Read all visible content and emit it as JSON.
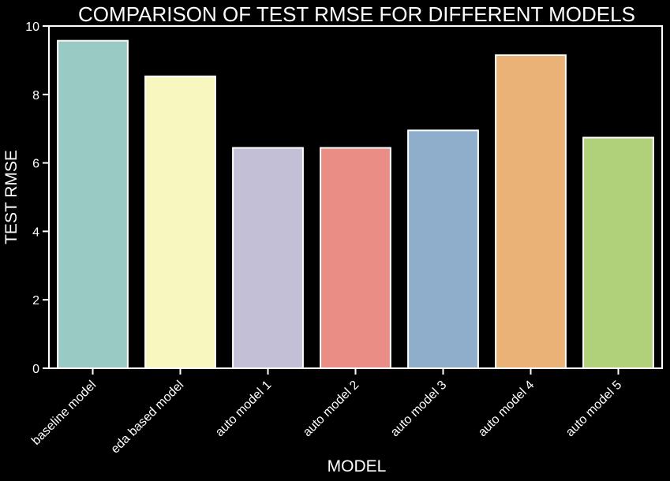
{
  "chart_data": {
    "type": "bar",
    "title": "COMPARISON OF TEST RMSE FOR DIFFERENT MODELS",
    "xlabel": "MODEL",
    "ylabel": "TEST RMSE",
    "categories": [
      "baseline model",
      "eda based model",
      "auto model 1",
      "auto model 2",
      "auto model 3",
      "auto model 4",
      "auto model 5"
    ],
    "values": [
      9.57,
      8.53,
      6.44,
      6.44,
      6.95,
      9.15,
      6.74
    ],
    "colors": [
      "#99cbc4",
      "#f7f7bf",
      "#c3bfd6",
      "#e98d85",
      "#8eaecb",
      "#eab277",
      "#b0d079"
    ],
    "ylim": [
      0,
      10
    ],
    "yticks": [
      0,
      2,
      4,
      6,
      8,
      10
    ],
    "grid": false,
    "legend": "none",
    "background": "#000000",
    "foreground": "#ffffff"
  }
}
